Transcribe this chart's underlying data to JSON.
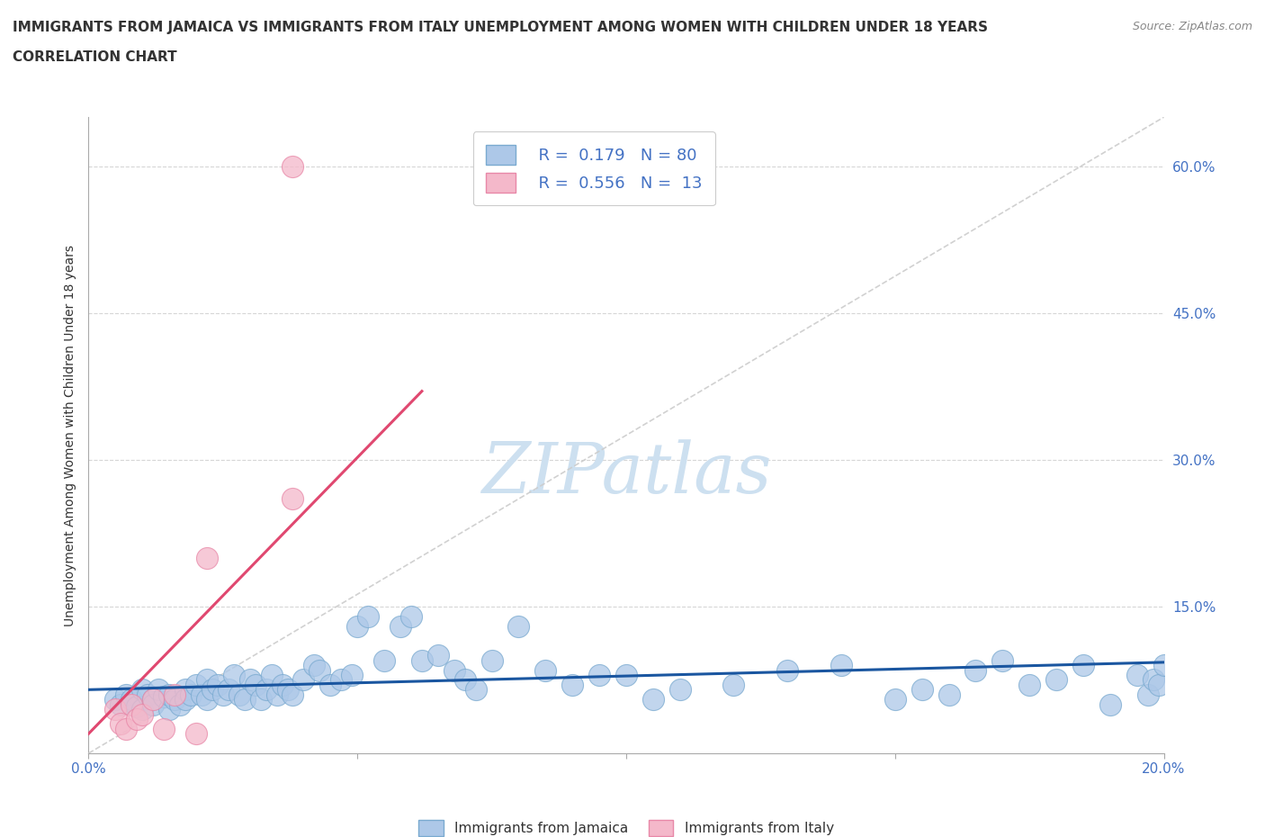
{
  "title_line1": "IMMIGRANTS FROM JAMAICA VS IMMIGRANTS FROM ITALY UNEMPLOYMENT AMONG WOMEN WITH CHILDREN UNDER 18 YEARS",
  "title_line2": "CORRELATION CHART",
  "source": "Source: ZipAtlas.com",
  "ylabel": "Unemployment Among Women with Children Under 18 years",
  "xlim": [
    0.0,
    0.2
  ],
  "ylim": [
    0.0,
    0.65
  ],
  "r_jamaica": 0.179,
  "n_jamaica": 80,
  "r_italy": 0.556,
  "n_italy": 13,
  "color_jamaica": "#adc8e8",
  "color_italy": "#f4b8ca",
  "edge_jamaica": "#7aaad0",
  "edge_italy": "#e888a8",
  "trendline_jamaica_color": "#1a56a0",
  "trendline_italy_color": "#e04870",
  "title_color": "#333333",
  "axis_tick_color": "#4472c4",
  "watermark_color": "#cde0f0",
  "jamaica_x": [
    0.005,
    0.006,
    0.007,
    0.008,
    0.009,
    0.01,
    0.01,
    0.011,
    0.012,
    0.012,
    0.013,
    0.014,
    0.015,
    0.015,
    0.016,
    0.017,
    0.018,
    0.018,
    0.019,
    0.02,
    0.021,
    0.022,
    0.022,
    0.023,
    0.024,
    0.025,
    0.026,
    0.027,
    0.028,
    0.029,
    0.03,
    0.031,
    0.032,
    0.033,
    0.034,
    0.035,
    0.036,
    0.037,
    0.038,
    0.04,
    0.042,
    0.043,
    0.045,
    0.047,
    0.049,
    0.05,
    0.052,
    0.055,
    0.058,
    0.06,
    0.062,
    0.065,
    0.068,
    0.07,
    0.072,
    0.075,
    0.08,
    0.085,
    0.09,
    0.095,
    0.1,
    0.105,
    0.11,
    0.12,
    0.13,
    0.14,
    0.15,
    0.155,
    0.16,
    0.165,
    0.17,
    0.175,
    0.18,
    0.185,
    0.19,
    0.195,
    0.197,
    0.198,
    0.199,
    0.2
  ],
  "jamaica_y": [
    0.055,
    0.05,
    0.06,
    0.055,
    0.048,
    0.065,
    0.045,
    0.06,
    0.055,
    0.05,
    0.065,
    0.058,
    0.045,
    0.06,
    0.055,
    0.05,
    0.065,
    0.055,
    0.06,
    0.07,
    0.06,
    0.075,
    0.055,
    0.065,
    0.07,
    0.06,
    0.065,
    0.08,
    0.06,
    0.055,
    0.075,
    0.07,
    0.055,
    0.065,
    0.08,
    0.06,
    0.07,
    0.065,
    0.06,
    0.075,
    0.09,
    0.085,
    0.07,
    0.075,
    0.08,
    0.13,
    0.14,
    0.095,
    0.13,
    0.14,
    0.095,
    0.1,
    0.085,
    0.075,
    0.065,
    0.095,
    0.13,
    0.085,
    0.07,
    0.08,
    0.08,
    0.055,
    0.065,
    0.07,
    0.085,
    0.09,
    0.055,
    0.065,
    0.06,
    0.085,
    0.095,
    0.07,
    0.075,
    0.09,
    0.05,
    0.08,
    0.06,
    0.075,
    0.07,
    0.09
  ],
  "italy_x": [
    0.005,
    0.006,
    0.007,
    0.008,
    0.009,
    0.01,
    0.012,
    0.014,
    0.016,
    0.02,
    0.022,
    0.038,
    0.038
  ],
  "italy_y": [
    0.045,
    0.03,
    0.025,
    0.05,
    0.035,
    0.04,
    0.055,
    0.025,
    0.06,
    0.02,
    0.2,
    0.26,
    0.6
  ],
  "jamaica_trend_x0": 0.0,
  "jamaica_trend_y0": 0.065,
  "jamaica_trend_x1": 0.2,
  "jamaica_trend_y1": 0.093,
  "italy_trend_x0": 0.0,
  "italy_trend_y0": 0.02,
  "italy_trend_x1": 0.062,
  "italy_trend_y1": 0.37
}
